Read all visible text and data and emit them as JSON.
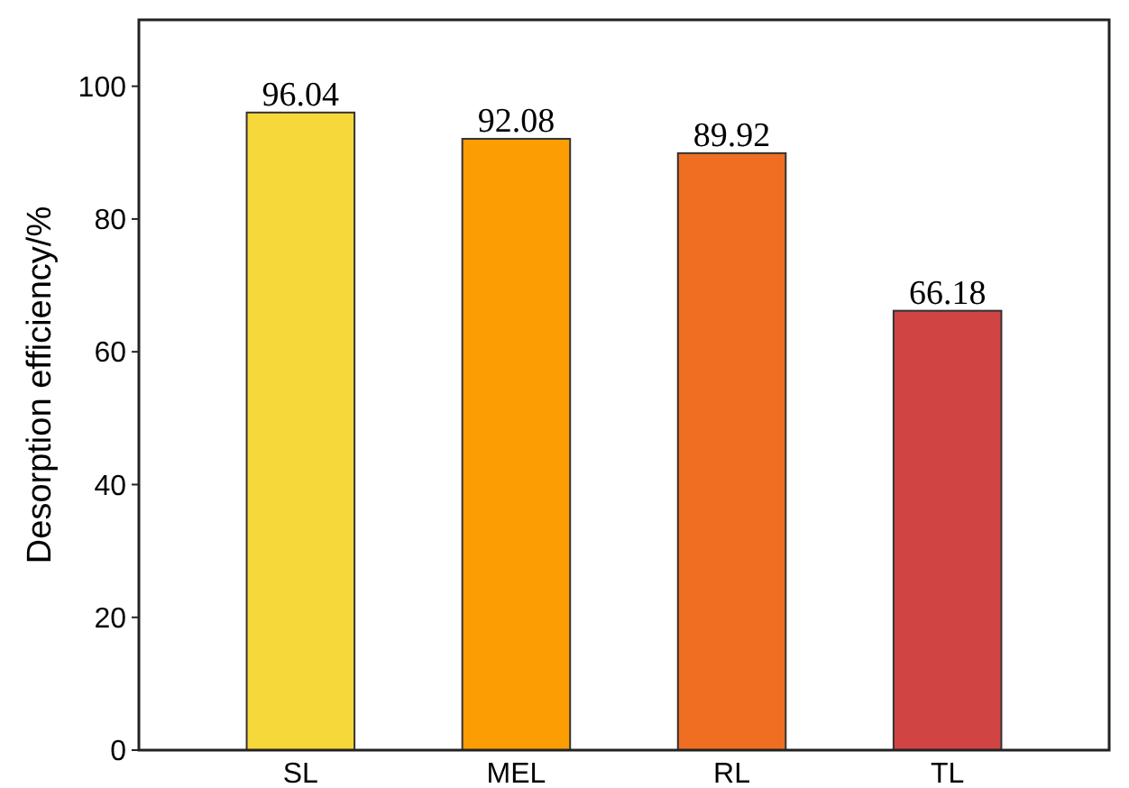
{
  "chart_data": {
    "type": "bar",
    "ylabel": "Desorption efficiency/%",
    "categories": [
      "SL",
      "MEL",
      "RL",
      "TL"
    ],
    "values": [
      96.04,
      92.08,
      89.92,
      66.18
    ],
    "colors": [
      "#f7d83a",
      "#fc9d04",
      "#ef6e22",
      "#d04444"
    ],
    "ylim": [
      0,
      110
    ],
    "yticks": [
      0,
      20,
      40,
      60,
      80,
      100
    ],
    "data_labels": true,
    "grid": false
  }
}
